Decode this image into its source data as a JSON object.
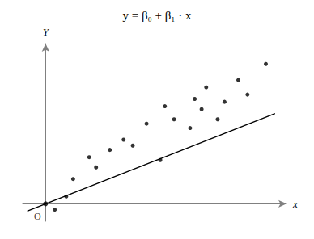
{
  "chart_data": {
    "type": "scatter",
    "title": "y = β₀ + β₁ · x",
    "xlabel": "x",
    "ylabel": "Y",
    "series": [
      {
        "type": "line",
        "color": "black",
        "x": [
          -0.08,
          1.0
        ],
        "values": [
          -0.05,
          0.62
        ]
      },
      {
        "type": "scatter",
        "color": "black",
        "x": [
          0.04,
          0.09,
          0.12,
          0.19,
          0.22,
          0.28,
          0.34,
          0.38,
          0.44,
          0.5,
          0.52,
          0.56,
          0.63,
          0.65,
          0.68,
          0.7,
          0.75,
          0.78,
          0.84,
          0.88,
          0.96
        ],
        "values": [
          -0.04,
          0.05,
          0.17,
          0.32,
          0.25,
          0.37,
          0.44,
          0.4,
          0.55,
          0.3,
          0.67,
          0.58,
          0.52,
          0.72,
          0.65,
          0.8,
          0.58,
          0.7,
          0.85,
          0.75,
          0.96
        ]
      }
    ],
    "annotations": [
      {
        "text": "O",
        "x": 0,
        "y": 0
      }
    ],
    "xlim": [
      -0.1,
      1.05
    ],
    "ylim": [
      -0.12,
      1.1
    ],
    "tick_labels": false,
    "grid": false
  }
}
